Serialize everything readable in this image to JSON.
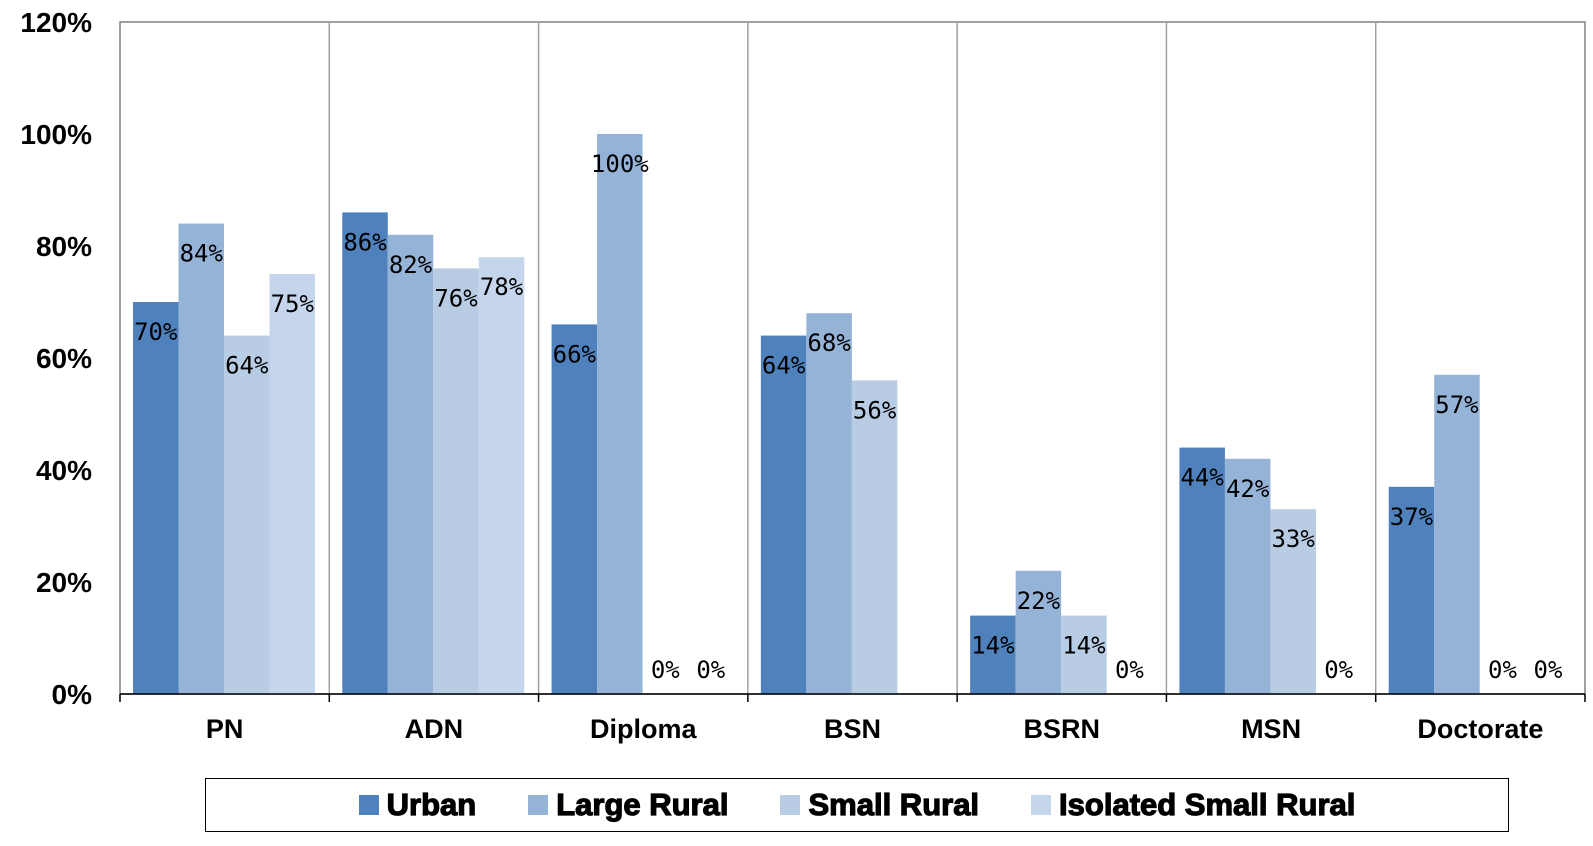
{
  "chart_data": {
    "type": "bar",
    "categories": [
      "PN",
      "ADN",
      "Diploma",
      "BSN",
      "BSRN",
      "MSN",
      "Doctorate"
    ],
    "series": [
      {
        "name": "Urban",
        "color": "#4f81bd",
        "values": [
          70,
          86,
          66,
          64,
          14,
          44,
          37
        ]
      },
      {
        "name": "Large Rural",
        "color": "#95b3d7",
        "values": [
          84,
          82,
          100,
          68,
          22,
          42,
          57
        ]
      },
      {
        "name": "Small Rural",
        "color": "#b8cce4",
        "values": [
          64,
          76,
          0,
          56,
          14,
          33,
          0
        ]
      },
      {
        "name": "Isolated Small Rural",
        "color": "#c5d6ec",
        "values": [
          75,
          78,
          0,
          0,
          0,
          0,
          0
        ]
      }
    ],
    "data_labels": [
      [
        "70%",
        "84%",
        "64%",
        "75%"
      ],
      [
        "86%",
        "82%",
        "76%",
        "78%"
      ],
      [
        "66%",
        "100%",
        "0%",
        "0%"
      ],
      [
        "64%",
        "68%",
        "56%",
        null
      ],
      [
        "14%",
        "22%",
        "14%",
        "0%"
      ],
      [
        "44%",
        "42%",
        "33%",
        "0%"
      ],
      [
        "37%",
        "57%",
        "0%",
        "0%"
      ]
    ],
    "y_ticks": [
      "0%",
      "20%",
      "40%",
      "60%",
      "80%",
      "100%",
      "120%"
    ],
    "ylim": [
      0,
      120
    ],
    "title": "",
    "xlabel": "",
    "ylabel": "",
    "grid": false,
    "legend_position": "bottom"
  }
}
